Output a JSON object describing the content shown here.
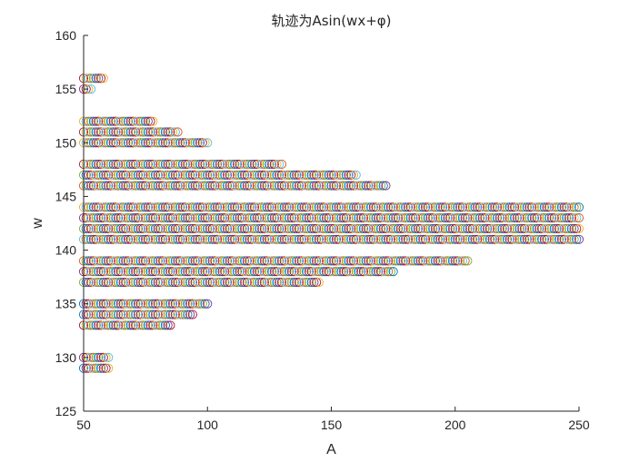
{
  "chart_data": {
    "type": "scatter",
    "title": "轨迹为Asin(wx+φ)",
    "xlabel": "A",
    "ylabel": "w",
    "xlim": [
      50,
      250
    ],
    "ylim": [
      125,
      160
    ],
    "xticks": [
      50,
      100,
      150,
      200,
      250
    ],
    "yticks": [
      125,
      130,
      135,
      140,
      145,
      150,
      155,
      160
    ],
    "marker": "open-circle",
    "x_step": 1,
    "grid": false,
    "legend": "none",
    "colors": [
      "#0072BD",
      "#D95319",
      "#EDB120",
      "#7E2F8E",
      "#77AC30",
      "#4DBEEE",
      "#A2142F"
    ],
    "bands": [
      {
        "w": 129,
        "x_start": 50,
        "x_end": 60
      },
      {
        "w": 130,
        "x_start": 50,
        "x_end": 60
      },
      {
        "w": 133,
        "x_start": 50,
        "x_end": 85
      },
      {
        "w": 134,
        "x_start": 50,
        "x_end": 94
      },
      {
        "w": 135,
        "x_start": 50,
        "x_end": 100
      },
      {
        "w": 137,
        "x_start": 50,
        "x_end": 145
      },
      {
        "w": 138,
        "x_start": 50,
        "x_end": 175
      },
      {
        "w": 139,
        "x_start": 50,
        "x_end": 205
      },
      {
        "w": 141,
        "x_start": 50,
        "x_end": 250
      },
      {
        "w": 142,
        "x_start": 50,
        "x_end": 250
      },
      {
        "w": 143,
        "x_start": 50,
        "x_end": 250
      },
      {
        "w": 144,
        "x_start": 50,
        "x_end": 250
      },
      {
        "w": 146,
        "x_start": 50,
        "x_end": 172
      },
      {
        "w": 147,
        "x_start": 50,
        "x_end": 160
      },
      {
        "w": 148,
        "x_start": 50,
        "x_end": 130
      },
      {
        "w": 150,
        "x_start": 50,
        "x_end": 100
      },
      {
        "w": 151,
        "x_start": 50,
        "x_end": 88
      },
      {
        "w": 152,
        "x_start": 50,
        "x_end": 78
      },
      {
        "w": 155,
        "x_start": 50,
        "x_end": 53
      },
      {
        "w": 156,
        "x_start": 50,
        "x_end": 58
      }
    ]
  }
}
